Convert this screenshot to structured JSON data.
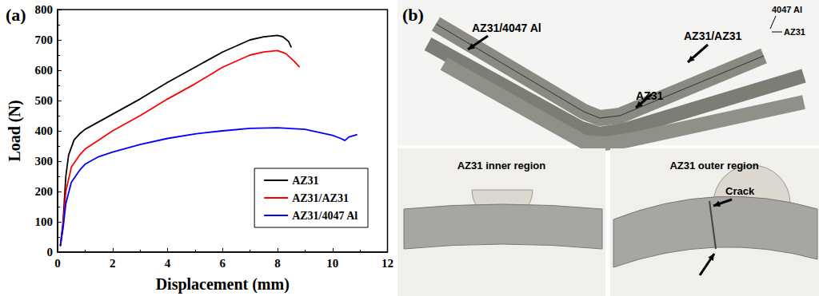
{
  "chart_data": {
    "type": "line",
    "title": "(a)",
    "x_label": "Displacement (mm)",
    "y_label": "Load (N)",
    "xlim": [
      0,
      12
    ],
    "xticks": [
      0,
      2,
      4,
      6,
      8,
      10,
      12
    ],
    "ylim": [
      0,
      800
    ],
    "yticks": [
      0,
      100,
      200,
      300,
      400,
      500,
      600,
      700,
      800
    ],
    "grid": false,
    "legend": "lower right",
    "series": [
      {
        "name": "AZ31",
        "color": "#000000",
        "x": [
          0.1,
          0.2,
          0.3,
          0.4,
          0.6,
          0.8,
          1,
          1.5,
          2,
          3,
          4,
          5,
          6,
          7,
          7.5,
          8,
          8.2,
          8.4,
          8.5
        ],
        "values": [
          20,
          100,
          250,
          320,
          370,
          390,
          405,
          430,
          455,
          505,
          560,
          610,
          660,
          700,
          710,
          715,
          710,
          695,
          675
        ]
      },
      {
        "name": "AZ31/AZ31",
        "color": "#ff0000",
        "x": [
          0.1,
          0.2,
          0.3,
          0.5,
          0.8,
          1,
          1.5,
          2,
          3,
          4,
          5,
          6,
          7,
          7.5,
          8,
          8.3,
          8.6,
          8.8
        ],
        "values": [
          20,
          90,
          200,
          280,
          320,
          340,
          370,
          400,
          450,
          505,
          555,
          610,
          650,
          660,
          665,
          655,
          630,
          610
        ]
      },
      {
        "name": "AZ31/4047 Al",
        "color": "#0000ff",
        "x": [
          0.1,
          0.2,
          0.3,
          0.5,
          0.8,
          1,
          1.5,
          2,
          3,
          4,
          5,
          6,
          7,
          8,
          9,
          9.5,
          10,
          10.3,
          10.45,
          10.6,
          10.8,
          10.9
        ],
        "values": [
          20,
          80,
          160,
          230,
          270,
          290,
          315,
          330,
          355,
          375,
          390,
          400,
          408,
          410,
          405,
          395,
          385,
          375,
          368,
          380,
          385,
          388
        ]
      }
    ]
  },
  "figure_b": {
    "label": "(b)",
    "top_photo": {
      "labels": [
        "AZ31/4047 Al",
        "AZ31/AZ31",
        "AZ31"
      ],
      "layer_labels": [
        "4047 Al",
        "AZ31"
      ]
    },
    "bottom_photos": [
      {
        "caption": "AZ31 inner region"
      },
      {
        "caption": "AZ31 outer region",
        "annotation": "Crack"
      }
    ]
  }
}
